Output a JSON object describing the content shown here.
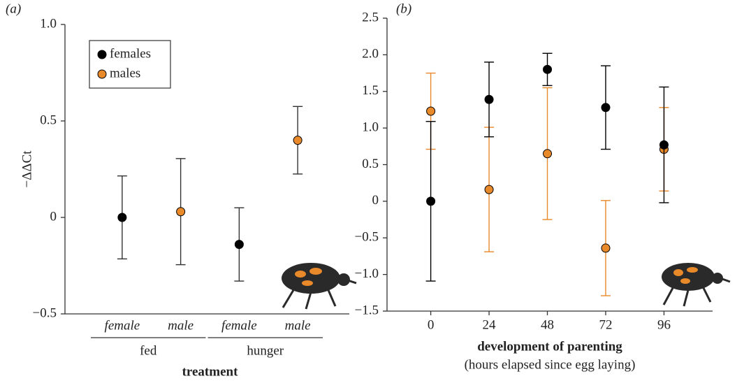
{
  "chart_data": [
    {
      "type": "errorbar",
      "panel_label": "(a)",
      "y_label": "−ΔΔCt",
      "x_label": "treatment",
      "categories": [
        "female",
        "male",
        "female",
        "male"
      ],
      "group_labels": [
        "fed",
        "hunger"
      ],
      "ylim": [
        -0.5,
        1.0
      ],
      "yticks": [
        {
          "value": -0.5,
          "label": "−0.5"
        },
        0,
        0.5,
        {
          "value": 1.0,
          "label": "1.0"
        }
      ],
      "legend": "upper left",
      "errorbar_color": "#333333",
      "series": [
        {
          "name": "females",
          "color": "#000000",
          "values": [
            0,
            null,
            -0.14,
            null
          ],
          "errors": [
            0.215,
            null,
            0.19,
            null
          ]
        },
        {
          "name": "males",
          "color": "#e8892a",
          "values": [
            null,
            0.03,
            null,
            0.4
          ],
          "errors": [
            null,
            0.275,
            null,
            0.175
          ]
        }
      ]
    },
    {
      "type": "errorbar",
      "panel_label": "(b)",
      "x_label": "development of parenting",
      "x_sublabel": "(hours elapsed since egg laying)",
      "xlim": [
        -18,
        116
      ],
      "xticks": [
        0,
        24,
        48,
        72,
        96
      ],
      "ylim": [
        -1.5,
        2.5
      ],
      "yticks": [
        {
          "value": -1.5,
          "label": "−1.5"
        },
        {
          "value": -1.0,
          "label": "−1.0"
        },
        {
          "value": -0.5,
          "label": "−0.5"
        },
        0,
        0.5,
        {
          "value": 1.0,
          "label": "1.0"
        },
        1.5,
        {
          "value": 2.0,
          "label": "2.0"
        },
        2.5
      ],
      "series": [
        {
          "color": "#e8892a",
          "x": [
            0,
            24,
            48,
            72,
            96
          ],
          "values": [
            1.23,
            0.16,
            0.65,
            -0.64,
            0.71
          ],
          "errors": [
            0.52,
            0.85,
            0.9,
            0.65,
            0.57
          ]
        },
        {
          "color": "#000000",
          "x": [
            0,
            24,
            48,
            72,
            96
          ],
          "values": [
            0,
            1.39,
            1.8,
            1.28,
            0.77
          ],
          "errors": [
            1.09,
            0.51,
            0.22,
            0.57,
            0.79
          ]
        }
      ]
    }
  ]
}
